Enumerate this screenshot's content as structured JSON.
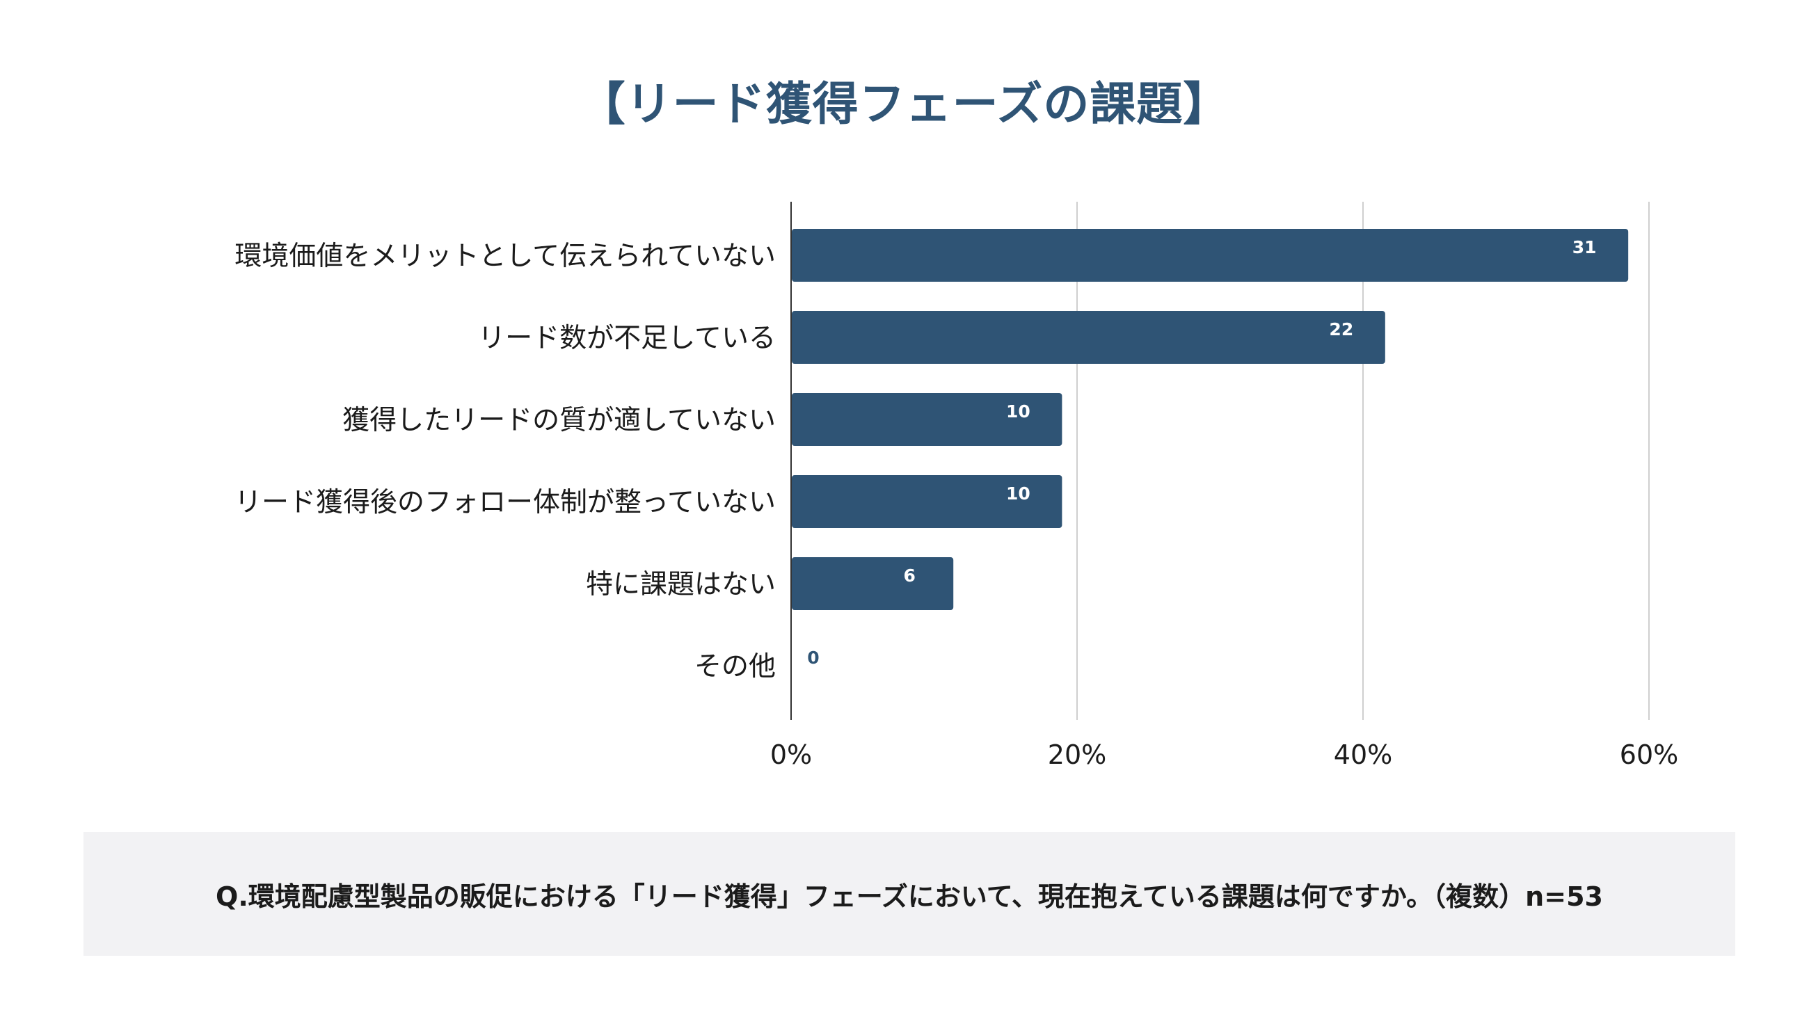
{
  "title": "【リード獲得フェーズの課題】",
  "chart_data": {
    "type": "bar",
    "orientation": "horizontal",
    "categories": [
      "環境価値をメリットとして伝えられていない",
      "リード数が不足している",
      "獲得したリードの質が適していない",
      "リード獲得後のフォロー体制が整っていない",
      "特に課題はない",
      "その他"
    ],
    "values": [
      31,
      22,
      10,
      10,
      6,
      0
    ],
    "percent_of_n": [
      58.5,
      41.5,
      18.9,
      18.9,
      11.3,
      0
    ],
    "n": 53,
    "x_ticks": [
      "0%",
      "20%",
      "40%",
      "60%"
    ],
    "xlim": [
      0,
      60
    ],
    "grid": true,
    "bar_color": "#2f5475",
    "label_color_inside": "#ffffff",
    "label_color_outside": "#2f5475"
  },
  "note": {
    "question": "Q.環境配慮型製品の販促における「リード獲得」フェーズにおいて、現在抱えている課題は何ですか。（複数）n=53"
  }
}
